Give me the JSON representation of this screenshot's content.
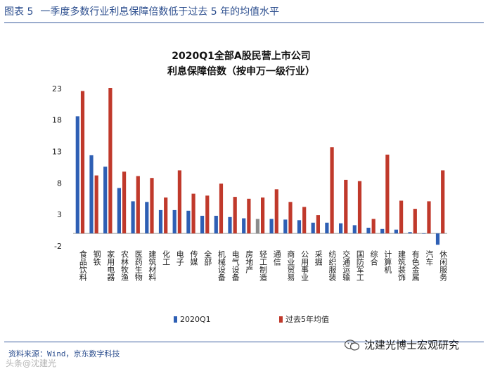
{
  "caption": {
    "label": "图表 5",
    "text": "一季度多数行业利息保障倍数低于过去 5 年的均值水平"
  },
  "chart_data": {
    "type": "bar",
    "title": "2020Q1全部A股民营上市公司",
    "subtitle": "利息保障倍数（按申万一级行业）",
    "xlabel": "",
    "ylabel": "",
    "ylim": [
      -2,
      25
    ],
    "yticks": [
      -2,
      3,
      8,
      13,
      18,
      23
    ],
    "categories": [
      "食品饮料",
      "钢铁",
      "家用电器",
      "农林牧渔",
      "医药生物",
      "建筑材料",
      "化工",
      "电子",
      "传媒",
      "全部",
      "机械设备",
      "电气设备",
      "房地产",
      "轻工制造",
      "通信",
      "商业贸易",
      "公用事业",
      "采掘",
      "纺织服装",
      "交通运输",
      "国防军工",
      "综合",
      "计算机",
      "建筑装饰",
      "有色金属",
      "汽车",
      "休闲服务"
    ],
    "series": [
      {
        "name": "2020Q1",
        "color": "#2e5fb4",
        "values": [
          18.6,
          12.4,
          10.6,
          7.2,
          5.1,
          5.0,
          3.7,
          3.7,
          3.6,
          2.8,
          2.8,
          2.6,
          2.4,
          2.3,
          2.3,
          2.2,
          2.1,
          1.7,
          1.7,
          1.6,
          1.3,
          0.9,
          0.7,
          0.6,
          0.2,
          0.0,
          -1.8
        ]
      },
      {
        "name": "过去5年均值",
        "color": "#c0392b",
        "values": [
          22.6,
          9.2,
          23.1,
          9.8,
          9.1,
          8.8,
          5.7,
          10.0,
          6.3,
          6.0,
          7.9,
          5.8,
          5.5,
          5.7,
          7.0,
          5.0,
          4.2,
          2.9,
          13.7,
          8.5,
          8.3,
          2.3,
          12.5,
          5.2,
          3.9,
          5.1,
          10.0
        ]
      }
    ],
    "highlight_category": "轻工制造",
    "legend": "bottom-center"
  },
  "source": "资料来源：Wind，京东数字科技",
  "watermark": "沈建光博士宏观研究",
  "watermark2": "头条@沈建光"
}
